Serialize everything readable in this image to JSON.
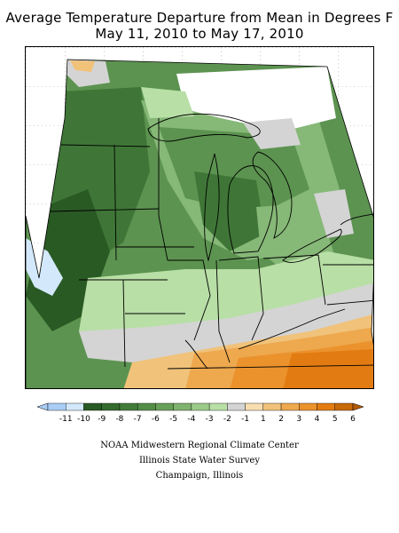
{
  "title_line1": "Average Temperature Departure from Mean in Degrees F",
  "title_line2": "May 11, 2010 to May 17, 2010",
  "legend": {
    "unit": "degrees F",
    "bins": [
      {
        "label": "-11",
        "color": "#a9cdf5"
      },
      {
        "label": "-10",
        "color": "#d3e9fb"
      },
      {
        "label": "-9",
        "color": "#2a5a24"
      },
      {
        "label": "-8",
        "color": "#356b2e"
      },
      {
        "label": "-7",
        "color": "#437c3a"
      },
      {
        "label": "-6",
        "color": "#548d48"
      },
      {
        "label": "-5",
        "color": "#689f59"
      },
      {
        "label": "-4",
        "color": "#7fb26e"
      },
      {
        "label": "-3",
        "color": "#9acb88"
      },
      {
        "label": "-2",
        "color": "#b8dfa6"
      },
      {
        "label": "-1",
        "color": "#d4d4d4"
      },
      {
        "label": "1",
        "color": "#f7ddb0"
      },
      {
        "label": "2",
        "color": "#f0c27a"
      },
      {
        "label": "3",
        "color": "#eea84e"
      },
      {
        "label": "4",
        "color": "#eb922d"
      },
      {
        "label": "5",
        "color": "#e27c12"
      },
      {
        "label": "6",
        "color": "#c76a0a"
      }
    ],
    "end_low_color": "#a9cdf5",
    "end_high_color": "#b35a05"
  },
  "credits": {
    "line1": "NOAA Midwestern Regional Climate Center",
    "line2": "Illinois State Water Survey",
    "line3": "Champaign, Illinois"
  },
  "map": {
    "region": "Midwest United States",
    "palette": {
      "deep_green": "#2a5a24",
      "dark_green": "#3f7637",
      "mid_green": "#5c9350",
      "light_green": "#86b877",
      "pale_green": "#b8dfa6",
      "gray": "#d4d4d4",
      "light_orange": "#f0c27a",
      "orange": "#eb922d",
      "dark_orange": "#e27c12",
      "light_blue": "#d3e9fb"
    }
  }
}
